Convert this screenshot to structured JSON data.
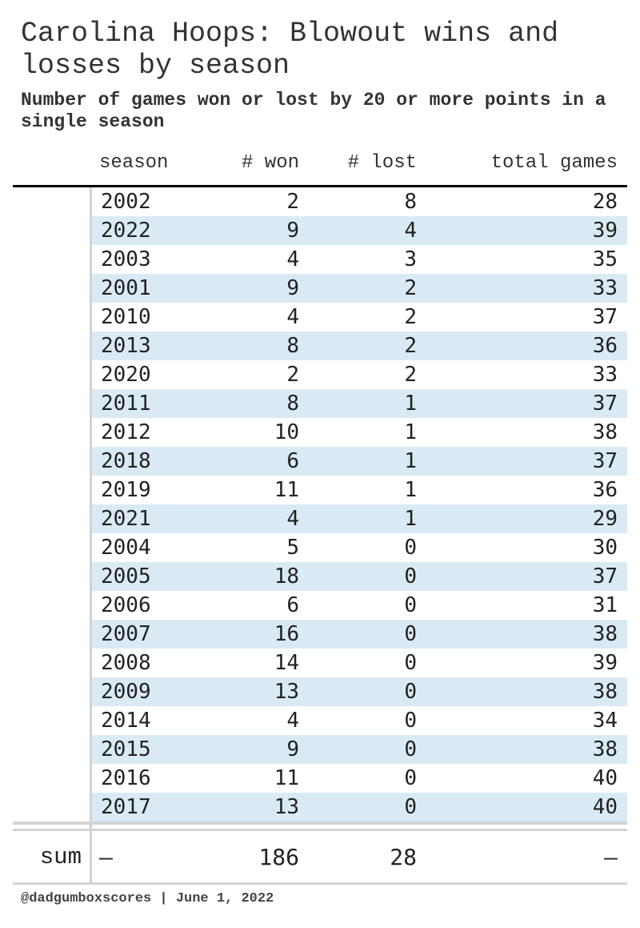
{
  "title": "Carolina Hoops: Blowout wins and losses by season",
  "subtitle": "Number of games won or lost by 20 or more points in a single season",
  "columns": {
    "season": "season",
    "won": "# won",
    "lost": "# lost",
    "total": "total games"
  },
  "rows": [
    {
      "season": "2002",
      "won": "2",
      "lost": "8",
      "total": "28"
    },
    {
      "season": "2022",
      "won": "9",
      "lost": "4",
      "total": "39"
    },
    {
      "season": "2003",
      "won": "4",
      "lost": "3",
      "total": "35"
    },
    {
      "season": "2001",
      "won": "9",
      "lost": "2",
      "total": "33"
    },
    {
      "season": "2010",
      "won": "4",
      "lost": "2",
      "total": "37"
    },
    {
      "season": "2013",
      "won": "8",
      "lost": "2",
      "total": "36"
    },
    {
      "season": "2020",
      "won": "2",
      "lost": "2",
      "total": "33"
    },
    {
      "season": "2011",
      "won": "8",
      "lost": "1",
      "total": "37"
    },
    {
      "season": "2012",
      "won": "10",
      "lost": "1",
      "total": "38"
    },
    {
      "season": "2018",
      "won": "6",
      "lost": "1",
      "total": "37"
    },
    {
      "season": "2019",
      "won": "11",
      "lost": "1",
      "total": "36"
    },
    {
      "season": "2021",
      "won": "4",
      "lost": "1",
      "total": "29"
    },
    {
      "season": "2004",
      "won": "5",
      "lost": "0",
      "total": "30"
    },
    {
      "season": "2005",
      "won": "18",
      "lost": "0",
      "total": "37"
    },
    {
      "season": "2006",
      "won": "6",
      "lost": "0",
      "total": "31"
    },
    {
      "season": "2007",
      "won": "16",
      "lost": "0",
      "total": "38"
    },
    {
      "season": "2008",
      "won": "14",
      "lost": "0",
      "total": "39"
    },
    {
      "season": "2009",
      "won": "13",
      "lost": "0",
      "total": "38"
    },
    {
      "season": "2014",
      "won": "4",
      "lost": "0",
      "total": "34"
    },
    {
      "season": "2015",
      "won": "9",
      "lost": "0",
      "total": "38"
    },
    {
      "season": "2016",
      "won": "11",
      "lost": "0",
      "total": "40"
    },
    {
      "season": "2017",
      "won": "13",
      "lost": "0",
      "total": "40"
    }
  ],
  "summary": {
    "label": "sum",
    "season": "—",
    "won": "186",
    "lost": "28",
    "total": "—"
  },
  "footer": "@dadgumboxscores | June 1, 2022",
  "colors": {
    "stripe": "#daeaf5",
    "rule": "#d3d3d3",
    "header_rule": "#000000"
  }
}
